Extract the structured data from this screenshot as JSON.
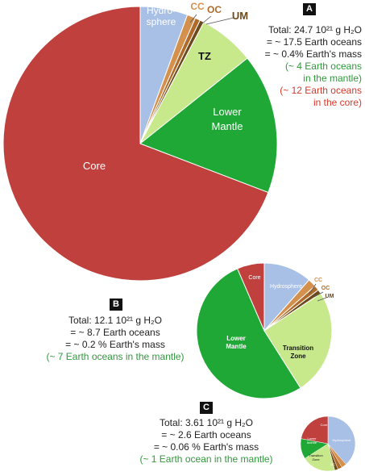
{
  "colors": {
    "hydrosphere": "#a8bfe6",
    "cc": "#d4914e",
    "oc": "#b06a2a",
    "um": "#6d4a1c",
    "tz": "#c8e88c",
    "lower_mantle": "#1fa835",
    "core": "#c0403d",
    "green_text": "#2e9a3a",
    "red_text": "#d63a2a"
  },
  "chart_data": [
    {
      "type": "pie",
      "panel": "A",
      "slices": [
        {
          "label": "Hydro-\nsphere",
          "value": 5.6
        },
        {
          "label": "CC",
          "value": 1.0
        },
        {
          "label": "OC",
          "value": 0.6
        },
        {
          "label": "UM",
          "value": 0.5
        },
        {
          "label": "TZ",
          "value": 6.6
        },
        {
          "label": "Lower\nMantle",
          "value": 16.5
        },
        {
          "label": "Core",
          "value": 69.2
        }
      ],
      "info": [
        "Total: 24.7 10²¹ g H₂O",
        "= ~ 17.5 Earth oceans",
        "= ~ 0.4% Earth's mass",
        "(~ 4 Earth oceans",
        "in the mantle)",
        "(~ 12 Earth oceans",
        "in the core)"
      ]
    },
    {
      "type": "pie",
      "panel": "B",
      "slices": [
        {
          "label": "Hydrosphere",
          "value": 11.5
        },
        {
          "label": "CC",
          "value": 2.0
        },
        {
          "label": "OC",
          "value": 1.2
        },
        {
          "label": "UM",
          "value": 1.0
        },
        {
          "label": "Transition\nZone",
          "value": 25.3
        },
        {
          "label": "Lower\nMantle",
          "value": 52.5
        },
        {
          "label": "Core",
          "value": 6.5
        }
      ],
      "info": [
        "Total: 12.1 10²¹ g H₂O",
        "= ~ 8.7 Earth oceans",
        "= ~ 0.2 % Earth's mass",
        "(~ 7 Earth oceans in the mantle)"
      ]
    },
    {
      "type": "pie",
      "panel": "C",
      "slices": [
        {
          "label": "Hydrosphere",
          "value": 38.5
        },
        {
          "label": "CC",
          "value": 3.0
        },
        {
          "label": "OC",
          "value": 2.5
        },
        {
          "label": "UM",
          "value": 2.0
        },
        {
          "label": "Transition\nZone",
          "value": 20.0
        },
        {
          "label": "Lower\nMantle",
          "value": 12.0
        },
        {
          "label": "Core",
          "value": 22.0
        }
      ],
      "info": [
        "Total: 3.61 10²¹ g H₂O",
        "= ~ 2.6 Earth oceans",
        "= ~ 0.06 % Earth's mass",
        "(~ 1 Earth ocean in the mantle)"
      ]
    }
  ]
}
